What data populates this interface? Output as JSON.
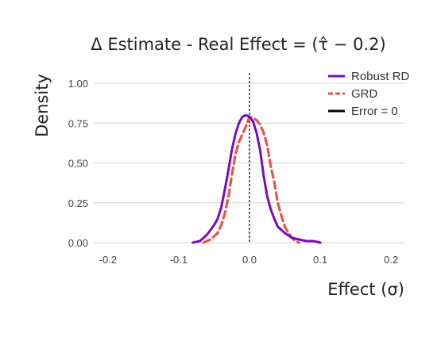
{
  "chart_data": {
    "type": "line",
    "title": "Δ Estimate - Real Effect = (τ̂ − 0.2)",
    "xlabel": "Effect (σ)",
    "ylabel": "Density",
    "xlim": [
      -0.22,
      0.22
    ],
    "ylim": [
      0,
      1.05
    ],
    "x_ticks": [
      -0.2,
      -0.1,
      0.0,
      0.1,
      0.2
    ],
    "x_tick_labels": [
      "-0.2",
      "-0.1",
      "0.0",
      "0.1",
      "0.2"
    ],
    "y_ticks": [
      0,
      0.25,
      0.5,
      0.75,
      1.0
    ],
    "y_tick_labels": [
      "0.00",
      "0.25",
      "0.50",
      "0.75",
      "1.00"
    ],
    "grid": "horizontal",
    "legend_position": "top-right",
    "reference_line": {
      "name": "Error = 0",
      "x": 0,
      "color": "#000000",
      "style": "dotted"
    },
    "series": [
      {
        "name": "Robust RD",
        "color": "#7b0bbd",
        "style": "solid",
        "points": [
          [
            -0.08,
            0.0
          ],
          [
            -0.07,
            0.01
          ],
          [
            -0.06,
            0.05
          ],
          [
            -0.05,
            0.11
          ],
          [
            -0.045,
            0.15
          ],
          [
            -0.04,
            0.22
          ],
          [
            -0.035,
            0.33
          ],
          [
            -0.03,
            0.45
          ],
          [
            -0.025,
            0.58
          ],
          [
            -0.02,
            0.68
          ],
          [
            -0.015,
            0.75
          ],
          [
            -0.01,
            0.79
          ],
          [
            -0.005,
            0.8
          ],
          [
            0.0,
            0.79
          ],
          [
            0.005,
            0.76
          ],
          [
            0.01,
            0.69
          ],
          [
            0.015,
            0.58
          ],
          [
            0.02,
            0.42
          ],
          [
            0.025,
            0.29
          ],
          [
            0.03,
            0.21
          ],
          [
            0.035,
            0.15
          ],
          [
            0.04,
            0.1
          ],
          [
            0.05,
            0.06
          ],
          [
            0.06,
            0.03
          ],
          [
            0.07,
            0.02
          ],
          [
            0.08,
            0.01
          ],
          [
            0.09,
            0.01
          ],
          [
            0.1,
            0.0
          ]
        ]
      },
      {
        "name": "GRD",
        "color": "#e0584c",
        "style": "dashed",
        "points": [
          [
            -0.065,
            0.0
          ],
          [
            -0.055,
            0.02
          ],
          [
            -0.045,
            0.06
          ],
          [
            -0.04,
            0.11
          ],
          [
            -0.035,
            0.18
          ],
          [
            -0.03,
            0.28
          ],
          [
            -0.025,
            0.42
          ],
          [
            -0.02,
            0.55
          ],
          [
            -0.015,
            0.63
          ],
          [
            -0.01,
            0.68
          ],
          [
            -0.005,
            0.73
          ],
          [
            0.0,
            0.79
          ],
          [
            0.005,
            0.78
          ],
          [
            0.01,
            0.77
          ],
          [
            0.015,
            0.74
          ],
          [
            0.02,
            0.69
          ],
          [
            0.025,
            0.61
          ],
          [
            0.03,
            0.48
          ],
          [
            0.035,
            0.38
          ],
          [
            0.04,
            0.25
          ],
          [
            0.045,
            0.17
          ],
          [
            0.05,
            0.1
          ],
          [
            0.055,
            0.06
          ],
          [
            0.06,
            0.03
          ],
          [
            0.065,
            0.01
          ],
          [
            0.07,
            0.0
          ]
        ]
      }
    ]
  }
}
